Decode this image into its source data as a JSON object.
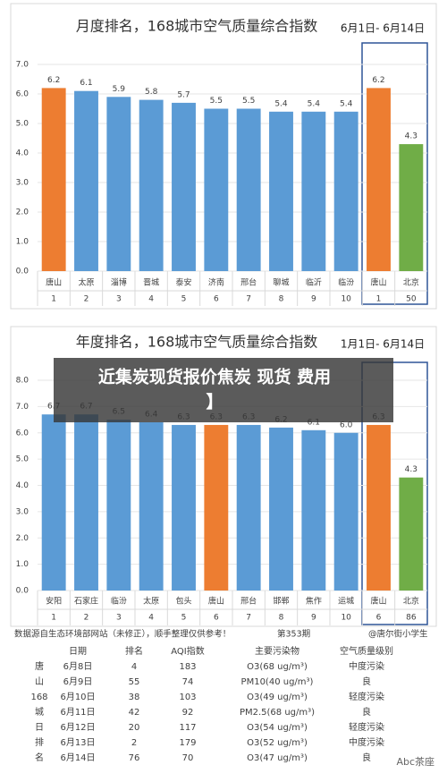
{
  "chart_data": [
    {
      "type": "bar",
      "title": "月度排名，168城市空气质量综合指数",
      "subtitle": "6月1日- 6月14日",
      "categories": [
        "唐山",
        "太原",
        "淄博",
        "晋城",
        "泰安",
        "济南",
        "邢台",
        "聊城",
        "临沂",
        "临汾",
        "唐山",
        "北京"
      ],
      "ranks": [
        1,
        2,
        3,
        4,
        5,
        6,
        7,
        8,
        9,
        10,
        1,
        50
      ],
      "values": [
        6.2,
        6.1,
        5.9,
        5.8,
        5.7,
        5.5,
        5.5,
        5.4,
        5.4,
        5.4,
        6.2,
        4.3
      ],
      "colors": [
        "#ED7D31",
        "#5B9BD5",
        "#5B9BD5",
        "#5B9BD5",
        "#5B9BD5",
        "#5B9BD5",
        "#5B9BD5",
        "#5B9BD5",
        "#5B9BD5",
        "#5B9BD5",
        "#ED7D31",
        "#70AD47"
      ],
      "ylim": [
        0,
        7
      ],
      "yticks": [
        {
          "value": 0,
          "label": "0.0"
        },
        {
          "value": 1,
          "label": "1.0"
        },
        {
          "value": 2,
          "label": "2.0"
        },
        {
          "value": 3,
          "label": "3.0"
        },
        {
          "value": 4,
          "label": "4.0"
        },
        {
          "value": 5,
          "label": "5.0"
        },
        {
          "value": 6,
          "label": "6.0"
        },
        {
          "value": 7,
          "label": "7.0"
        }
      ],
      "grid": true
    },
    {
      "type": "bar",
      "title": "年度排名，168城市空气质量综合指数",
      "subtitle": "1月1日- 6月14日",
      "categories": [
        "安阳",
        "石家庄",
        "临汾",
        "太原",
        "包头",
        "唐山",
        "邢台",
        "邯郸",
        "焦作",
        "运城",
        "唐山",
        "北京"
      ],
      "ranks": [
        1,
        2,
        3,
        4,
        5,
        6,
        7,
        8,
        9,
        10,
        6,
        86
      ],
      "values": [
        6.7,
        6.7,
        6.5,
        6.4,
        6.3,
        6.3,
        6.3,
        6.2,
        6.1,
        6.0,
        6.3,
        4.3
      ],
      "value_labels": [
        "6.7",
        "6.7",
        "6.5",
        "6.4",
        "6.3",
        "6.3",
        "6.3",
        "6.2",
        "6.1",
        "6.0",
        "6.3",
        "4.3"
      ],
      "colors": [
        "#5B9BD5",
        "#5B9BD5",
        "#5B9BD5",
        "#5B9BD5",
        "#5B9BD5",
        "#ED7D31",
        "#5B9BD5",
        "#5B9BD5",
        "#5B9BD5",
        "#5B9BD5",
        "#ED7D31",
        "#70AD47"
      ],
      "ylim": [
        0,
        8
      ],
      "yticks": [
        {
          "value": 0,
          "label": "0.0"
        },
        {
          "value": 1,
          "label": "1.0"
        },
        {
          "value": 2,
          "label": "2.0"
        },
        {
          "value": 3,
          "label": "3.0"
        },
        {
          "value": 4,
          "label": "4.0"
        },
        {
          "value": 5,
          "label": "5.0"
        },
        {
          "value": 6,
          "label": "6.0"
        },
        {
          "value": 7,
          "label": "7.0"
        },
        {
          "value": 8,
          "label": "8.0"
        }
      ],
      "grid": true
    }
  ],
  "overlay": {
    "line1": "近集炭现货报价焦炭 现货 费用",
    "line2": "】"
  },
  "source": {
    "note": "数据源自生态环境部网站（未修正），顺手整理仅供参考！",
    "issue": "第353期",
    "author": "@唐尔街小学生"
  },
  "table": {
    "header": [
      "日期",
      "排名",
      "AQI指数",
      "主要污染物",
      "空气质量级别"
    ],
    "side": [
      "唐",
      "山",
      "168",
      "城",
      "日",
      "排",
      "名"
    ],
    "rows": [
      [
        "6月8日",
        4,
        183,
        "O3(68 ug/m³)",
        "中度污染"
      ],
      [
        "6月9日",
        55,
        74,
        "PM10(40 ug/m³)",
        "良"
      ],
      [
        "6月10日",
        38,
        103,
        "O3(49 ug/m³)",
        "轻度污染"
      ],
      [
        "6月11日",
        42,
        92,
        "PM2.5(68 ug/m³)",
        "良"
      ],
      [
        "6月12日",
        20,
        117,
        "O3(54 ug/m³)",
        "轻度污染"
      ],
      [
        "6月13日",
        2,
        179,
        "O3(52 ug/m³)",
        "中度污染"
      ],
      [
        "6月14日",
        76,
        70,
        "O3(47 ug/m³)",
        "良"
      ]
    ]
  },
  "watermark": "Abc茶座"
}
